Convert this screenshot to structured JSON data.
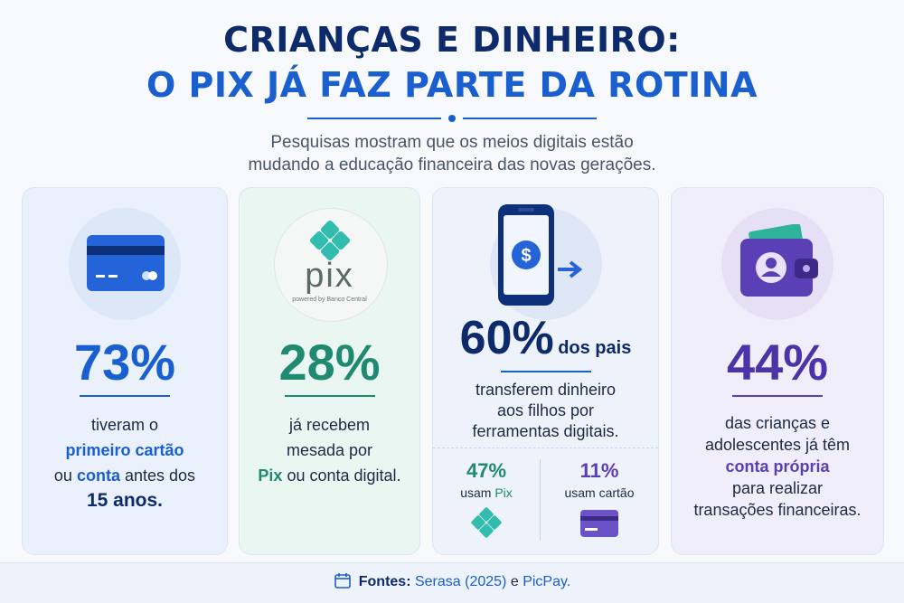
{
  "header": {
    "title_line1": "CRIANÇAS E DINHEIRO:",
    "title_line2": "O PIX JÁ FAZ PARTE DA ROTINA",
    "subtitle_line1": "Pesquisas mostram que os meios digitais estão",
    "subtitle_line2": "mudando a educação financeira das novas gerações."
  },
  "cards": [
    {
      "stat": "73%",
      "text": [
        "tiveram o",
        "primeiro cartão",
        "ou",
        "conta",
        "antes dos",
        "15 anos."
      ]
    },
    {
      "stat": "28%",
      "logo_text": "pix",
      "logo_caption": "powered by Banco Central",
      "text": [
        "já recebem",
        "mesada por",
        "Pix",
        "ou conta digital."
      ]
    },
    {
      "stat": "60%",
      "stat_suffix": "dos pais",
      "text": [
        "transferem dinheiro",
        "aos filhos por",
        "ferramentas digitais."
      ],
      "breakdown": [
        {
          "stat": "47%",
          "label": [
            "usam",
            "Pix"
          ]
        },
        {
          "stat": "11%",
          "label": [
            "usam cartão"
          ]
        }
      ]
    },
    {
      "stat": "44%",
      "text": [
        "das crianças e",
        "adolescentes já têm",
        "conta própria",
        "para realizar",
        "transações financeiras."
      ]
    }
  ],
  "footer": {
    "label": "Fontes:",
    "sources": [
      "Serasa (2025)",
      "e",
      "PicPay."
    ]
  }
}
